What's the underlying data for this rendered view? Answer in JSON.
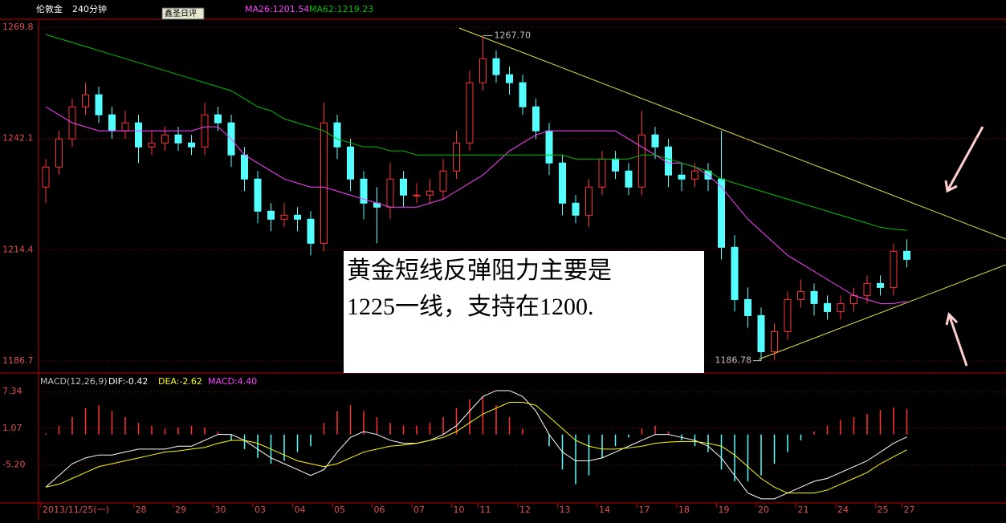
{
  "top_bar": {
    "symbol": "伦敦金",
    "period": "240分钟",
    "tooltip": "鑫圣日评"
  },
  "annotation_box": {
    "lines": [
      "黄金短线反弹阻力主要是",
      "1225一线，支持在1200."
    ]
  },
  "chart_data": [
    {
      "type": "candlestick",
      "categories": [
        "2013/11/25(一)",
        null,
        null,
        null,
        null,
        null,
        null,
        "28",
        null,
        null,
        "29",
        null,
        null,
        "30",
        null,
        null,
        "03",
        null,
        null,
        "04",
        null,
        null,
        "05",
        null,
        null,
        "06",
        null,
        null,
        "07",
        null,
        null,
        "10",
        null,
        "11",
        null,
        null,
        "12",
        null,
        null,
        "13",
        null,
        null,
        "14",
        null,
        null,
        "17",
        null,
        null,
        "18",
        null,
        null,
        "19",
        null,
        null,
        "20",
        null,
        null,
        "21",
        null,
        null,
        "24",
        null,
        null,
        "25",
        null,
        "27"
      ],
      "open": [
        1230,
        1235,
        1242,
        1250,
        1253,
        1248,
        1244,
        1246,
        1240,
        1241,
        1243,
        1241,
        1240,
        1248,
        1246,
        1238,
        1232,
        1224,
        1222,
        1223,
        1222,
        1216,
        1246,
        1240,
        1232,
        1226,
        1225,
        1232,
        1228,
        1228,
        1229,
        1234,
        1241,
        1256,
        1262,
        1258,
        1256,
        1250,
        1244,
        1236,
        1226,
        1223,
        1230,
        1237,
        1234,
        1230,
        1243,
        1240,
        1233,
        1232,
        1234,
        1232,
        1215,
        1202,
        1198,
        1189,
        1194,
        1202,
        1204,
        1201,
        1199,
        1201,
        1203,
        1206,
        1205,
        1214
      ],
      "high": [
        1237,
        1244,
        1252,
        1256,
        1255,
        1250,
        1249,
        1248,
        1244,
        1245,
        1245,
        1243,
        1251,
        1250,
        1248,
        1240,
        1234,
        1226,
        1226,
        1225,
        1224,
        1251,
        1248,
        1242,
        1234,
        1230,
        1236,
        1234,
        1231,
        1232,
        1237,
        1244,
        1259,
        1267.7,
        1264,
        1260,
        1258,
        1252,
        1246,
        1238,
        1228,
        1232,
        1239,
        1239,
        1236,
        1249,
        1245,
        1242,
        1236,
        1236,
        1236,
        1244,
        1218,
        1205,
        1200,
        1196,
        1204,
        1207,
        1206,
        1203,
        1203,
        1205,
        1208,
        1208,
        1216,
        1217
      ],
      "low": [
        1226,
        1233,
        1240,
        1248,
        1246,
        1242,
        1242,
        1236,
        1238,
        1239,
        1239,
        1238,
        1238,
        1244,
        1235,
        1229,
        1221,
        1219,
        1220,
        1219,
        1213,
        1214,
        1237,
        1229,
        1222,
        1216,
        1222,
        1225,
        1226,
        1226,
        1227,
        1232,
        1239,
        1254,
        1256,
        1253,
        1248,
        1242,
        1233,
        1223,
        1221,
        1220,
        1228,
        1232,
        1228,
        1228,
        1237,
        1230,
        1229,
        1230,
        1229,
        1212,
        1199,
        1195,
        1186.78,
        1187,
        1192,
        1200,
        1198,
        1197,
        1197,
        1199,
        1201,
        1203,
        1203,
        1210
      ],
      "close": [
        1235,
        1242,
        1250,
        1253,
        1248,
        1244,
        1246,
        1240,
        1241,
        1243,
        1241,
        1240,
        1248,
        1246,
        1238,
        1232,
        1224,
        1222,
        1223,
        1222,
        1216,
        1246,
        1240,
        1232,
        1226,
        1225,
        1232,
        1228,
        1228,
        1229,
        1234,
        1241,
        1256,
        1262,
        1258,
        1256,
        1250,
        1244,
        1236,
        1226,
        1223,
        1230,
        1237,
        1234,
        1230,
        1243,
        1240,
        1233,
        1232,
        1234,
        1232,
        1215,
        1202,
        1198,
        1189,
        1194,
        1202,
        1204,
        1201,
        1199,
        1201,
        1203,
        1206,
        1205,
        1214,
        1212
      ],
      "up_color": "#ff3232",
      "down_color": "#54ffff",
      "series": [
        {
          "name": "MA26:1201.54",
          "color": "#ff40ff",
          "values": [
            1250,
            1248,
            1246,
            1245,
            1244,
            1244,
            1244,
            1244,
            1244,
            1244,
            1244,
            1244,
            1245,
            1245,
            1242,
            1238,
            1236,
            1234,
            1232,
            1231,
            1230,
            1230,
            1229,
            1228,
            1227,
            1226,
            1225,
            1225,
            1225,
            1226,
            1227,
            1229,
            1231,
            1233,
            1236,
            1239,
            1241,
            1243,
            1244,
            1244,
            1244,
            1244,
            1244,
            1244,
            1242,
            1240,
            1238,
            1236,
            1236,
            1235,
            1233,
            1230,
            1226,
            1222,
            1219,
            1216,
            1213,
            1211,
            1209,
            1207,
            1205,
            1203,
            1202,
            1201,
            1201,
            1201.54
          ]
        },
        {
          "name": "MA62:1219.23",
          "color": "#00c000",
          "values": [
            1268,
            1267,
            1266,
            1265,
            1264,
            1263,
            1262,
            1261,
            1260,
            1259,
            1258,
            1257,
            1256,
            1255,
            1254,
            1252,
            1250,
            1249,
            1247,
            1246,
            1245,
            1244,
            1242,
            1241,
            1240,
            1240,
            1239,
            1239,
            1238,
            1238,
            1238,
            1238,
            1238,
            1238,
            1238,
            1238,
            1238,
            1238,
            1238,
            1238,
            1237,
            1237,
            1237,
            1237,
            1237,
            1238,
            1238,
            1237,
            1236,
            1235,
            1234,
            1232,
            1231,
            1230,
            1229,
            1228,
            1227,
            1226,
            1225,
            1224,
            1223,
            1222,
            1221,
            1220,
            1219.5,
            1219.23
          ]
        }
      ],
      "annotations": [
        {
          "value": 1267.7,
          "label": "1267.70"
        },
        {
          "value": 1186.78,
          "label": "1186.78"
        }
      ],
      "ylim": [
        1184.3,
        1271.6
      ],
      "yticks": [
        1186.7,
        1214.4,
        1242.1,
        1269.8
      ],
      "grid": true
    },
    {
      "type": "macd",
      "title": "MACD(12,26,9)",
      "series": [
        {
          "name": "DIF:-0.42",
          "color": "#ffffff",
          "values": [
            -9,
            -7,
            -5,
            -4,
            -3.5,
            -3.5,
            -3,
            -2.5,
            -2.5,
            -2.5,
            -2,
            -2,
            -1,
            0,
            0,
            -1,
            -2.5,
            -4,
            -5,
            -6,
            -7,
            -6,
            -3,
            -0.5,
            0.5,
            0,
            -1,
            -1.5,
            -1.5,
            -1,
            0,
            1.5,
            4,
            6.5,
            7.5,
            7.5,
            6.5,
            4,
            0,
            -3,
            -4.5,
            -4.5,
            -4,
            -3,
            -2,
            -1,
            0,
            0,
            -0.5,
            -1,
            -2,
            -4,
            -7,
            -10,
            -11,
            -11,
            -10,
            -9,
            -8,
            -7.5,
            -6.5,
            -5.5,
            -4.5,
            -3,
            -1.5,
            -0.42
          ]
        },
        {
          "name": "DEA:-2.62",
          "color": "#ffff00",
          "values": [
            -9,
            -8.5,
            -7.5,
            -6.5,
            -5.5,
            -5,
            -4.5,
            -4,
            -3.5,
            -3,
            -2.8,
            -2.5,
            -2.2,
            -1.5,
            -1,
            -1,
            -1.5,
            -2.5,
            -3.5,
            -4.5,
            -5,
            -5.5,
            -5,
            -4,
            -3,
            -2.5,
            -2,
            -1.8,
            -1.5,
            -1,
            -0.5,
            0.5,
            2,
            3.5,
            4.5,
            5.5,
            5.5,
            5,
            3,
            1,
            -1,
            -2,
            -2.5,
            -2.5,
            -2.3,
            -2,
            -1.5,
            -1.3,
            -1.2,
            -1.2,
            -1.5,
            -2,
            -3.5,
            -5.5,
            -7.5,
            -9,
            -10,
            -10,
            -10,
            -9.5,
            -8.5,
            -7.5,
            -6.5,
            -5,
            -3.8,
            -2.62
          ]
        }
      ],
      "histogram": {
        "name": "MACD:4.40",
        "color": "#ff40ff",
        "up_color": "#ff3232",
        "down_color": "#54ffff",
        "values": [
          0.2,
          1.5,
          3,
          4.5,
          5,
          4,
          3,
          2,
          1.5,
          1,
          1.2,
          1.5,
          1.2,
          0.5,
          -1,
          -2.5,
          -4,
          -5,
          -4.5,
          -3,
          -2,
          2,
          4,
          5,
          4,
          3,
          2,
          1.5,
          1.5,
          2,
          3,
          4.5,
          6,
          6.5,
          5,
          3,
          1,
          0,
          -2,
          -6,
          -8.5,
          -7,
          -4,
          -2,
          -0.5,
          1,
          1.5,
          0.5,
          -1,
          -2,
          -3,
          -6,
          -8,
          -8,
          -7,
          -5,
          -3,
          -1,
          0.5,
          1.5,
          2.5,
          3,
          3.5,
          4.2,
          4.6,
          4.4
        ]
      },
      "ylim": [
        -11.7,
        10.1
      ],
      "yticks": [
        {
          "value": -5.2,
          "label": "-5.20"
        },
        1.07,
        7.34
      ],
      "grid": true
    }
  ]
}
